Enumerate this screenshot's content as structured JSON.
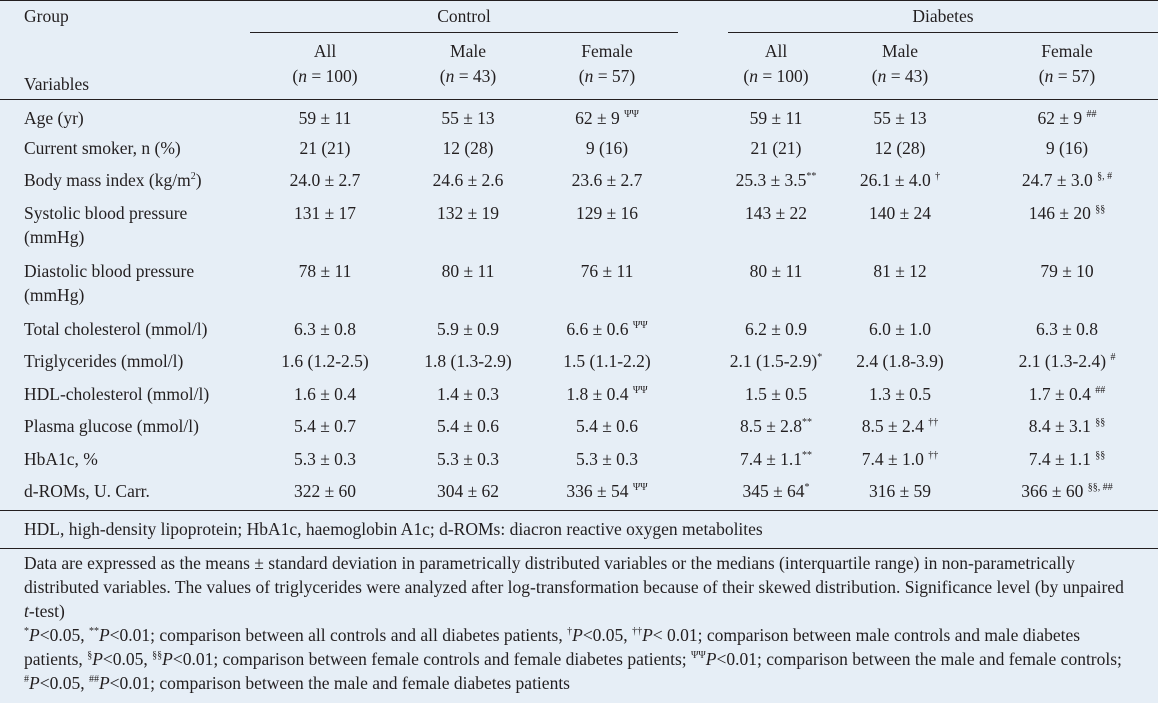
{
  "header": {
    "group_label": "Group",
    "variables_label": "Variables",
    "control_label": "Control",
    "diabetes_label": "Diabetes",
    "subcols": [
      {
        "name": "All",
        "n": "100"
      },
      {
        "name": "Male",
        "n": "43"
      },
      {
        "name": "Female",
        "n": "57"
      },
      {
        "name": "All",
        "n": "100"
      },
      {
        "name": "Male",
        "n": "43"
      },
      {
        "name": "Female",
        "n": "57"
      }
    ],
    "n_prefix": "(",
    "n_eq": " = ",
    "n_suffix": ")",
    "n_symbol": "n"
  },
  "rows": [
    {
      "label": "Age (yr)",
      "cells": [
        {
          "v": "59 ± 11"
        },
        {
          "v": "55 ± 13"
        },
        {
          "v": "62 ± 9 ",
          "s": "ΨΨ"
        },
        {
          "v": "59 ± 11"
        },
        {
          "v": "55 ± 13"
        },
        {
          "v": "62 ± 9 ",
          "s": "##"
        }
      ]
    },
    {
      "label": "Current smoker, n (%)",
      "cells": [
        {
          "v": "21 (21)"
        },
        {
          "v": "12 (28)"
        },
        {
          "v": "9 (16)"
        },
        {
          "v": "21 (21)"
        },
        {
          "v": "12 (28)"
        },
        {
          "v": "9 (16)"
        }
      ]
    },
    {
      "label": "Body mass index (kg/m",
      "label_sup": "2",
      "label_tail": ")",
      "cells": [
        {
          "v": "24.0 ± 2.7"
        },
        {
          "v": "24.6 ± 2.6"
        },
        {
          "v": "23.6 ± 2.7"
        },
        {
          "v": "25.3 ± 3.5",
          "s": "**"
        },
        {
          "v": "26.1 ± 4.0 ",
          "s": "†"
        },
        {
          "v": "24.7 ± 3.0 ",
          "s": "§, #"
        }
      ]
    },
    {
      "label": "Systolic blood pressure",
      "label2": "(mmHg)",
      "cells": [
        {
          "v": "131 ± 17"
        },
        {
          "v": "132 ± 19"
        },
        {
          "v": "129 ± 16"
        },
        {
          "v": "143 ± 22"
        },
        {
          "v": "140 ± 24"
        },
        {
          "v": "146 ± 20 ",
          "s": "§§"
        }
      ]
    },
    {
      "label": "Diastolic blood pressure",
      "label2": "(mmHg)",
      "cells": [
        {
          "v": "78 ± 11"
        },
        {
          "v": "80 ± 11"
        },
        {
          "v": "76 ± 11"
        },
        {
          "v": "80 ± 11"
        },
        {
          "v": "81 ± 12"
        },
        {
          "v": "79 ± 10"
        }
      ]
    },
    {
      "label": "Total cholesterol (mmol/l)",
      "cells": [
        {
          "v": "6.3 ± 0.8"
        },
        {
          "v": "5.9 ± 0.9"
        },
        {
          "v": "6.6 ± 0.6 ",
          "s": "ΨΨ"
        },
        {
          "v": "6.2 ± 0.9"
        },
        {
          "v": "6.0 ± 1.0"
        },
        {
          "v": "6.3 ± 0.8"
        }
      ]
    },
    {
      "label": "Triglycerides (mmol/l)",
      "cells": [
        {
          "v": "1.6 (1.2-2.5)"
        },
        {
          "v": "1.8 (1.3-2.9)"
        },
        {
          "v": "1.5 (1.1-2.2)"
        },
        {
          "v": "2.1 (1.5-2.9)",
          "s": "*"
        },
        {
          "v": "2.4 (1.8-3.9)"
        },
        {
          "v": "2.1 (1.3-2.4) ",
          "s": "#"
        }
      ]
    },
    {
      "label": "HDL-cholesterol (mmol/l)",
      "cells": [
        {
          "v": "1.6 ± 0.4"
        },
        {
          "v": "1.4 ± 0.3"
        },
        {
          "v": "1.8 ± 0.4 ",
          "s": "ΨΨ"
        },
        {
          "v": "1.5 ± 0.5"
        },
        {
          "v": "1.3 ± 0.5"
        },
        {
          "v": "1.7 ± 0.4 ",
          "s": "##"
        }
      ]
    },
    {
      "label": "Plasma glucose (mmol/l)",
      "cells": [
        {
          "v": "5.4 ± 0.7"
        },
        {
          "v": "5.4 ± 0.6"
        },
        {
          "v": "5.4 ± 0.6"
        },
        {
          "v": "8.5 ± 2.8",
          "s": "**"
        },
        {
          "v": "8.5 ± 2.4 ",
          "s": "††"
        },
        {
          "v": "8.4 ± 3.1 ",
          "s": "§§"
        }
      ]
    },
    {
      "label": "HbA1c, %",
      "cells": [
        {
          "v": "5.3 ± 0.3"
        },
        {
          "v": "5.3 ± 0.3"
        },
        {
          "v": "5.3 ± 0.3"
        },
        {
          "v": "7.4 ± 1.1",
          "s": "**"
        },
        {
          "v": "7.4 ± 1.0 ",
          "s": "††"
        },
        {
          "v": "7.4 ± 1.1 ",
          "s": "§§"
        }
      ]
    },
    {
      "label": "d-ROMs, U. Carr.",
      "cells": [
        {
          "v": "322 ± 60"
        },
        {
          "v": "304 ± 62"
        },
        {
          "v": "336 ± 54 ",
          "s": "ΨΨ"
        },
        {
          "v": "345 ± 64",
          "s": "*"
        },
        {
          "v": "316 ± 59"
        },
        {
          "v": "366 ± 60 ",
          "s": "§§, ##"
        }
      ]
    }
  ],
  "footnotes": {
    "abbrev": "HDL, high-density lipoprotein; HbA1c, haemoglobin A1c; d-ROMs: diacron reactive oxygen metabolites",
    "data_note": "Data are expressed as the means ± standard deviation in parametrically distributed variables or the medians (interquartile range) in non-parametrically distributed variables. The values of triglycerides were analyzed after log-transformation because of their skewed distribution. Significance level (by unpaired ",
    "data_note_t": "t",
    "data_note_tail": "-test)",
    "sig": [
      {
        "sup": "*",
        "p": "P",
        "text": "<0.05, "
      },
      {
        "sup": "**",
        "p": "P",
        "text": "<0.01; comparison between all controls and all diabetes patients, "
      },
      {
        "sup": "†",
        "p": "P",
        "text": "<0.05, "
      },
      {
        "sup": "††",
        "p": "P",
        "text": "< 0.01; comparison between male controls and male diabetes patients, "
      },
      {
        "sup": "§",
        "p": "P",
        "text": "<0.05, "
      },
      {
        "sup": "§§",
        "p": "P",
        "text": "<0.01; comparison between female controls and female diabetes patients; "
      },
      {
        "sup": "ΨΨ",
        "p": "P",
        "text": "<0.01; comparison between the male and female controls; "
      },
      {
        "sup": "#",
        "p": "P",
        "text": "<0.05, "
      },
      {
        "sup": "##",
        "p": "P",
        "text": "<0.01; comparison between the male and female diabetes patients"
      }
    ]
  }
}
